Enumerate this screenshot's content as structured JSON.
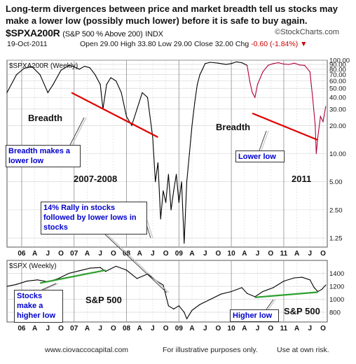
{
  "headline": "Long-term divergences between price and market breadth tell us stocks may make a lower low (possibly much lower) before it is safe to buy again.",
  "header": {
    "symbol": "$SPXA200R",
    "description": "(S&P 500 % Above 200)",
    "exchange": "INDX",
    "brand": "©StockCharts.com",
    "date": "19-Oct-2011",
    "open_label": "Open",
    "open": "29.00",
    "high_label": "High",
    "high": "33.80",
    "low_label": "Low",
    "low": "29.00",
    "close_label": "Close",
    "close": "32.00",
    "chg_label": "Chg",
    "chg": "-0.60 (-1.84%)"
  },
  "annotations": {
    "breadth_left": "Breadth",
    "breadth_right": "Breadth",
    "breadth_lower_low": "Breadth makes a lower low",
    "period_left": "2007-2008",
    "period_right": "2011",
    "lower_low": "Lower low",
    "rally": "14% Rally in stocks followed by lower lows in stocks",
    "stocks_higher_low": "Stocks make a higher low",
    "higher_low": "Higher low",
    "spx_left": "S&P 500",
    "spx_right": "S&P 500"
  },
  "footer": {
    "site": "www.ciovaccocapital.com",
    "note": "For illustrative purposes only.",
    "risk": "Use at own risk."
  },
  "colors": {
    "price_line": "#000000",
    "recent_line": "#b0003a",
    "trend_red": "#e00000",
    "trend_green": "#2ca02c",
    "grid": "#cfcfcf"
  },
  "chart_data": [
    {
      "type": "line",
      "panel_label": "$SPXA200R (Weekly)",
      "y_scale": "log",
      "ylim": [
        1.0,
        100.0
      ],
      "y_ticks": [
        "100.00",
        "90.00",
        "80.00",
        "70.00",
        "60.00",
        "50.00",
        "40.00",
        "30.00",
        "20.00",
        "10.00",
        "5.00",
        "2.50",
        "1.25"
      ],
      "x_ticks": [
        "06",
        "A",
        "J",
        "O",
        "07",
        "A",
        "J",
        "O",
        "08",
        "A",
        "J",
        "O",
        "09",
        "A",
        "J",
        "O",
        "10",
        "A",
        "J",
        "O",
        "11",
        "A",
        "J",
        "O"
      ],
      "x": [
        2005.72,
        2005.9,
        2006.05,
        2006.2,
        2006.35,
        2006.5,
        2006.6,
        2006.75,
        2006.9,
        2007.0,
        2007.1,
        2007.2,
        2007.3,
        2007.4,
        2007.5,
        2007.55,
        2007.62,
        2007.7,
        2007.8,
        2007.9,
        2008.0,
        2008.1,
        2008.2,
        2008.3,
        2008.4,
        2008.5,
        2008.55,
        2008.6,
        2008.65,
        2008.7,
        2008.75,
        2008.8,
        2008.85,
        2008.9,
        2008.95,
        2009.0,
        2009.05,
        2009.1,
        2009.15,
        2009.2,
        2009.25,
        2009.3,
        2009.35,
        2009.4,
        2009.45,
        2009.5,
        2009.6,
        2009.75,
        2009.9,
        2010.0,
        2010.1,
        2010.2,
        2010.3,
        2010.35,
        2010.4,
        2010.45,
        2010.5,
        2010.6,
        2010.7,
        2010.8,
        2010.9,
        2011.0,
        2011.1,
        2011.2,
        2011.3,
        2011.4,
        2011.5,
        2011.55,
        2011.6,
        2011.62,
        2011.65,
        2011.7,
        2011.75,
        2011.8
      ],
      "values": [
        45,
        70,
        82,
        85,
        70,
        45,
        55,
        78,
        88,
        85,
        80,
        86,
        83,
        70,
        55,
        30,
        55,
        65,
        60,
        45,
        25,
        20,
        30,
        45,
        40,
        15,
        5,
        8,
        2,
        4,
        3,
        6,
        2.5,
        4,
        6,
        3,
        5,
        1.1,
        5,
        10,
        20,
        35,
        55,
        70,
        80,
        92,
        95,
        93,
        90,
        92,
        96,
        94,
        88,
        60,
        45,
        40,
        55,
        75,
        88,
        92,
        94,
        91,
        90,
        93,
        89,
        88,
        75,
        40,
        20,
        10,
        15,
        25,
        22,
        32
      ],
      "highlight_from_x": 2010.3,
      "trendlines": [
        {
          "from": [
            2006.95,
            45
          ],
          "to": [
            2008.6,
            15
          ]
        },
        {
          "from": [
            2010.4,
            27
          ],
          "to": [
            2011.65,
            14
          ]
        }
      ]
    },
    {
      "type": "line",
      "panel_label": "$SPX (Weekly)",
      "ylim": [
        650,
        1600
      ],
      "y_ticks": [
        "1400",
        "1200",
        "1000",
        "800"
      ],
      "x_ticks": [
        "06",
        "A",
        "J",
        "O",
        "07",
        "A",
        "J",
        "O",
        "08",
        "A",
        "J",
        "O",
        "09",
        "A",
        "J",
        "O",
        "10",
        "A",
        "J",
        "O",
        "11",
        "A",
        "J",
        "O"
      ],
      "x": [
        2005.72,
        2005.9,
        2006.1,
        2006.3,
        2006.5,
        2006.7,
        2006.9,
        2007.1,
        2007.3,
        2007.5,
        2007.6,
        2007.8,
        2008.0,
        2008.2,
        2008.4,
        2008.6,
        2008.7,
        2008.8,
        2008.9,
        2009.0,
        2009.1,
        2009.15,
        2009.25,
        2009.4,
        2009.6,
        2009.8,
        2010.0,
        2010.2,
        2010.3,
        2010.45,
        2010.6,
        2010.8,
        2011.0,
        2011.2,
        2011.35,
        2011.5,
        2011.58,
        2011.65,
        2011.72,
        2011.8
      ],
      "values": [
        1200,
        1230,
        1280,
        1300,
        1270,
        1320,
        1400,
        1440,
        1480,
        1490,
        1430,
        1510,
        1450,
        1320,
        1390,
        1270,
        1220,
        900,
        850,
        900,
        800,
        700,
        830,
        920,
        1000,
        1080,
        1120,
        1180,
        1090,
        1040,
        1120,
        1180,
        1280,
        1330,
        1340,
        1300,
        1180,
        1120,
        1150,
        1220
      ],
      "trendlines": [
        {
          "from": [
            2006.35,
            1250
          ],
          "to": [
            2007.6,
            1450
          ]
        },
        {
          "from": [
            2010.45,
            1030
          ],
          "to": [
            2011.65,
            1110
          ]
        }
      ]
    }
  ]
}
